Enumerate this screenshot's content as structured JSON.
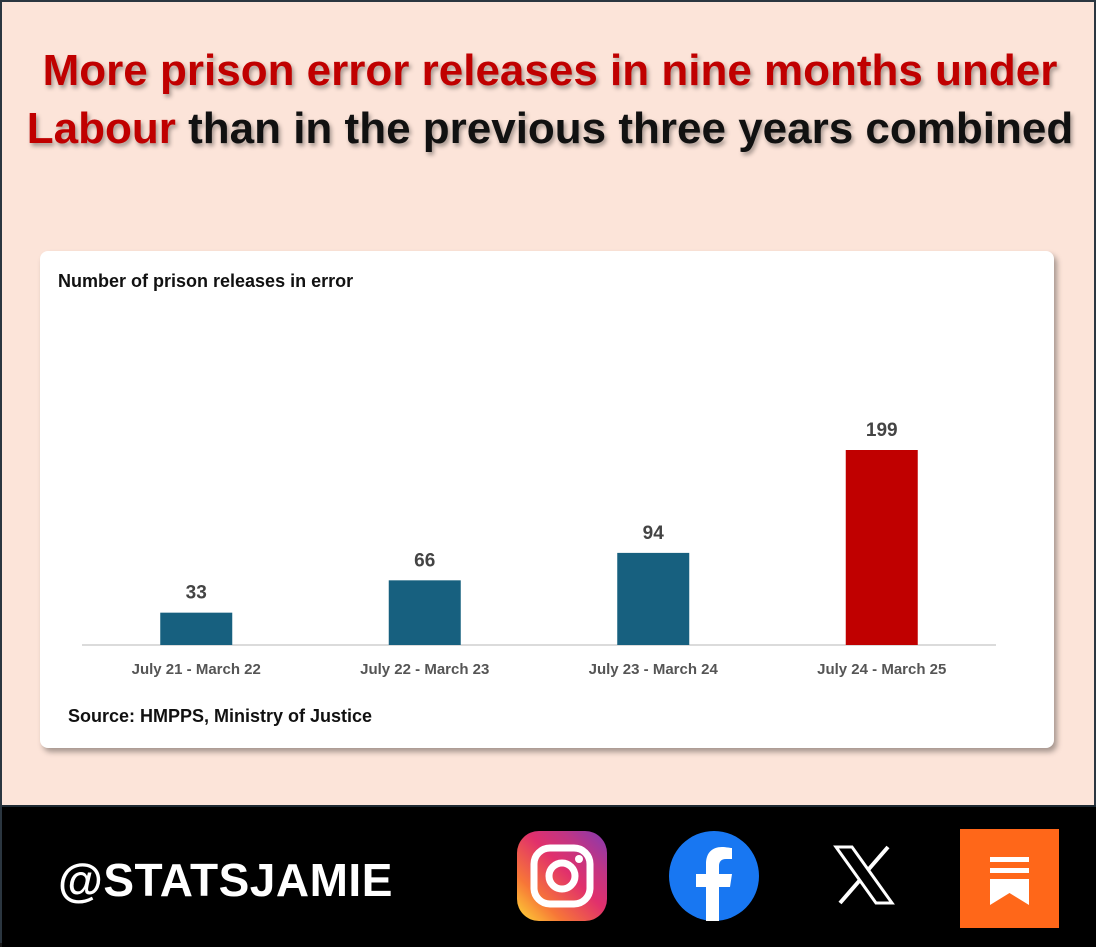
{
  "headline": {
    "red": "More prison error releases in nine months under Labour",
    "black": "than in the previous three years combined"
  },
  "chart_data": {
    "type": "bar",
    "title": "Number of prison releases in error",
    "categories": [
      "July 21 - March 22",
      "July 22 - March 23",
      "July 23 - March 24",
      "July 24 - March 25"
    ],
    "values": [
      33,
      66,
      94,
      199
    ],
    "bar_colors": [
      "#17607f",
      "#17607f",
      "#17607f",
      "#c00000"
    ],
    "data_labels": true,
    "xlabel": "",
    "ylabel": "",
    "ylim": [
      0,
      240
    ],
    "grid": false,
    "legend": "none",
    "source": "Source: HMPPS, Ministry of Justice"
  },
  "footer": {
    "handle": "@STATSJAMIE",
    "icons": [
      "instagram-icon",
      "facebook-icon",
      "x-icon",
      "substack-icon"
    ]
  }
}
